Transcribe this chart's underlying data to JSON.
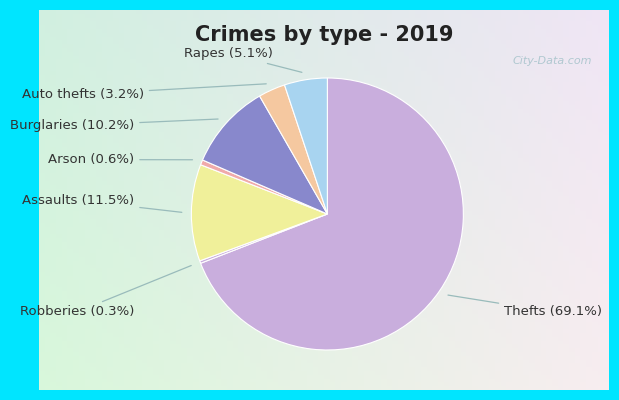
{
  "title": "Crimes by type - 2019",
  "slices": [
    {
      "label": "Thefts (69.1%)",
      "value": 69.1,
      "color": "#c9aedd"
    },
    {
      "label": "Robberies (0.3%)",
      "value": 0.3,
      "color": "#c9aedd"
    },
    {
      "label": "Assaults (11.5%)",
      "value": 11.5,
      "color": "#f0f09a"
    },
    {
      "label": "Arson (0.6%)",
      "value": 0.6,
      "color": "#f0aaaa"
    },
    {
      "label": "Burglaries (10.2%)",
      "value": 10.2,
      "color": "#8888cc"
    },
    {
      "label": "Auto thefts (3.2%)",
      "value": 3.2,
      "color": "#f5c8a0"
    },
    {
      "label": "Rapes (5.1%)",
      "value": 5.1,
      "color": "#a8d4f0"
    }
  ],
  "border_color": "#00e5ff",
  "border_width": 8,
  "title_fontsize": 15,
  "label_fontsize": 9.5,
  "watermark": "City-Data.com"
}
